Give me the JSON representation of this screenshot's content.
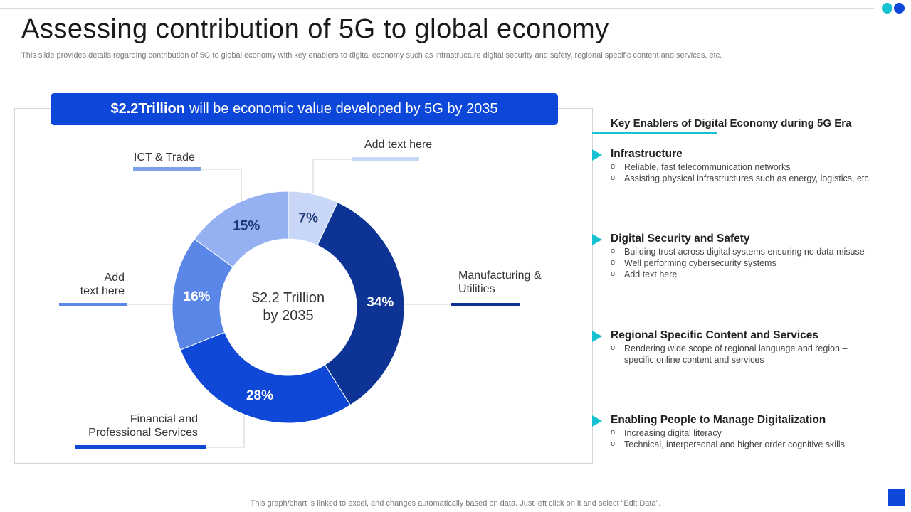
{
  "slide": {
    "title": "Assessing contribution of 5G to global economy",
    "subtitle": "This slide provides details regarding contribution of 5G to global economy with key enablers to digital economy such as infrastructure digital security and safety, regional specific content and services, etc.",
    "footnote": "This graph/chart is linked to excel,  and changes automatically based on data. Just left click on it and select “Edit Data”."
  },
  "colors": {
    "accent_blue": "#0d47d9",
    "accent_teal": "#17c1cf",
    "border": "#d5d5d5"
  },
  "banner": {
    "bold": "$2.2Trillion",
    "text": "will be economic value developed by 5G by 2035"
  },
  "center": {
    "line1": "$2.2 Trillion",
    "line2": "by 2035"
  },
  "labels": {
    "ict": "ICT & Trade",
    "add_top": "Add text here",
    "add_left_1": "Add",
    "add_left_2": "text here",
    "mfg_1": "Manufacturing  &",
    "mfg_2": "Utilities",
    "fin_1": "Financial and",
    "fin_2": "Professional Services"
  },
  "chart_data": {
    "type": "pie",
    "title": "$2.2 Trillion by 2035",
    "categories": [
      "Add text here",
      "Manufacturing & Utilities",
      "Financial and Professional Services",
      "Add text here",
      "ICT & Trade"
    ],
    "values": [
      7,
      34,
      28,
      16,
      15
    ],
    "value_labels": [
      "7%",
      "34%",
      "28%",
      "16%",
      "15%"
    ],
    "colors": [
      "#c8d6f7",
      "#0d3394",
      "#0f47d6",
      "#5a86e8",
      "#95b1f2"
    ],
    "hole": true
  },
  "enablers": {
    "heading": "Key Enablers of Digital Economy during 5G Era",
    "items": [
      {
        "title": "Infrastructure",
        "bullets": [
          "Reliable, fast telecommunication networks",
          "Assisting physical infrastructures  such as energy, logistics, etc."
        ]
      },
      {
        "title": "Digital Security and Safety",
        "bullets": [
          "Building trust across digital systems ensuring no data misuse",
          "Well performing  cybersecurity systems",
          "Add text here"
        ]
      },
      {
        "title": "Regional Specific Content and Services",
        "bullets": [
          "Rendering  wide scope of regional language and region –",
          "specific online content and services"
        ]
      },
      {
        "title": "Enabling People to Manage Digitalization",
        "bullets": [
          "Increasing digital literacy",
          "Technical,  interpersonal  and higher order cognitive  skills"
        ]
      }
    ]
  }
}
